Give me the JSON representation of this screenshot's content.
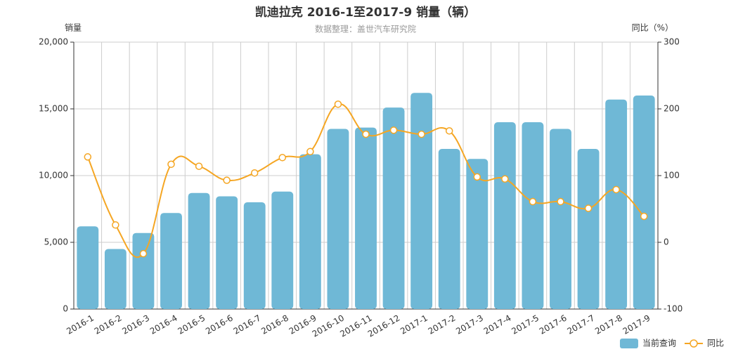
{
  "chart_data": {
    "type": "bar-line",
    "title": "凯迪拉克 2016-1至2017-9 销量（辆）",
    "subtitle": "数据整理：盖世汽车研究院",
    "y_label": "销量",
    "y2_label": "同比（%）",
    "categories": [
      "2016-1",
      "2016-2",
      "2016-3",
      "2016-4",
      "2016-5",
      "2016-6",
      "2016-7",
      "2016-8",
      "2016-9",
      "2016-10",
      "2016-11",
      "2016-12",
      "2017-1",
      "2017-2",
      "2017-3",
      "2017-4",
      "2017-5",
      "2017-6",
      "2017-7",
      "2017-8",
      "2017-9"
    ],
    "series": [
      {
        "name": "当前查询",
        "type": "bar",
        "color": "#6fb8d6",
        "values": [
          6200,
          4500,
          5700,
          7200,
          8700,
          8450,
          8000,
          8800,
          11600,
          13500,
          13600,
          15100,
          16200,
          12000,
          11250,
          14000,
          14000,
          13500,
          12000,
          15700,
          16000
        ]
      },
      {
        "name": "同比",
        "type": "line",
        "axis": "y2",
        "color": "#f5a623",
        "values": [
          128,
          26,
          -17,
          117,
          114,
          93,
          104,
          127,
          136,
          207,
          162,
          168,
          162,
          167,
          98,
          95,
          61,
          61,
          51,
          79,
          39
        ]
      }
    ],
    "ylim": [
      0,
      20000
    ],
    "yticks": [
      0,
      {
        "value": 5000,
        "label": "5,000"
      },
      {
        "value": 10000,
        "label": "10,000"
      },
      {
        "value": 15000,
        "label": "15,000"
      },
      {
        "value": 20000,
        "label": "20,000"
      }
    ],
    "y2lim": [
      -100,
      300
    ],
    "y2ticks": [
      -100,
      0,
      100,
      200,
      300
    ],
    "grid": true,
    "legend": "bottom-right"
  }
}
